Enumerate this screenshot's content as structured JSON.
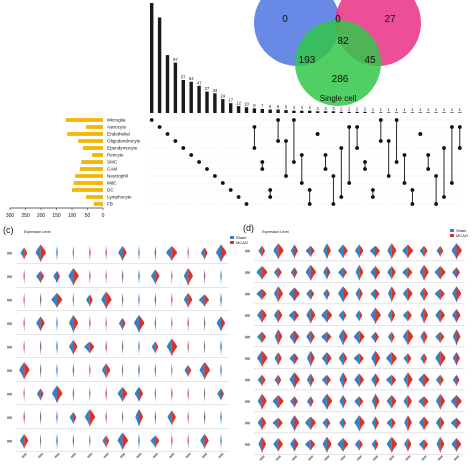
{
  "upset": {
    "chart_data": {
      "type": "bar",
      "intersection_values": [
        190,
        165,
        100,
        87,
        57,
        54,
        47,
        37,
        34,
        24,
        17,
        12,
        10,
        8,
        7,
        6,
        6,
        5,
        4,
        4,
        4,
        3,
        3,
        3,
        2,
        2,
        2,
        2,
        1,
        1,
        1,
        1,
        1,
        1,
        1,
        1,
        1,
        1,
        1,
        1
      ],
      "intersection_labels": [
        "",
        "",
        "",
        "87",
        "57",
        "54",
        "47",
        "37",
        "34",
        "24",
        "17",
        "12",
        "10",
        "8",
        "7",
        "6",
        "6",
        "5",
        "4",
        "4",
        "4",
        "3",
        "3",
        "3",
        "2",
        "2",
        "2",
        "2",
        "1",
        "1",
        "1",
        "1",
        "1",
        "1",
        "1",
        "1",
        "1",
        "1",
        "1",
        "1"
      ],
      "set_names": [
        "Microglia",
        "Astrocyte",
        "Endothelial",
        "Oligodendrocyte",
        "Ependymocyte",
        "Pericyte",
        "SMC",
        "CAM",
        "Neutrophil",
        "MdC",
        "DC",
        "Lymphocyte",
        "FB"
      ],
      "set_sizes": [
        120,
        55,
        115,
        80,
        65,
        35,
        70,
        75,
        90,
        95,
        100,
        55,
        30
      ],
      "set_axis_ticks": [
        "300",
        "250",
        "200",
        "150",
        "100",
        "50",
        "0"
      ],
      "set_axis_max": 300,
      "bar_color": "#1a1a1a",
      "set_bar_color": "#f2b705"
    }
  },
  "venn": {
    "chart_data": {
      "type": "venn",
      "regions": {
        "blue_only": "0",
        "blue_pink": "0",
        "pink_only": "27",
        "center": "82",
        "blue_green": "193",
        "pink_green": "45",
        "green_only": "286"
      },
      "set_label_green": "Single cell",
      "colors": {
        "blue": "#4f74e3",
        "pink": "#ea2f86",
        "green": "#33c749"
      }
    }
  },
  "panel_c": {
    "panel_label": "(c)",
    "subtitle": "Expression Level",
    "legend": [
      {
        "name": "Sham",
        "color": "#3a7fc4"
      },
      {
        "name": "MCAO",
        "color": "#d8342a"
      }
    ],
    "row_count": 9,
    "column_count": 13
  },
  "panel_d": {
    "panel_label": "(d)",
    "subtitle": "Expression Level",
    "legend": [
      {
        "name": "Sham",
        "color": "#3a7fc4"
      },
      {
        "name": "MCAO",
        "color": "#d8342a"
      }
    ],
    "row_count": 10,
    "column_count": 13
  }
}
